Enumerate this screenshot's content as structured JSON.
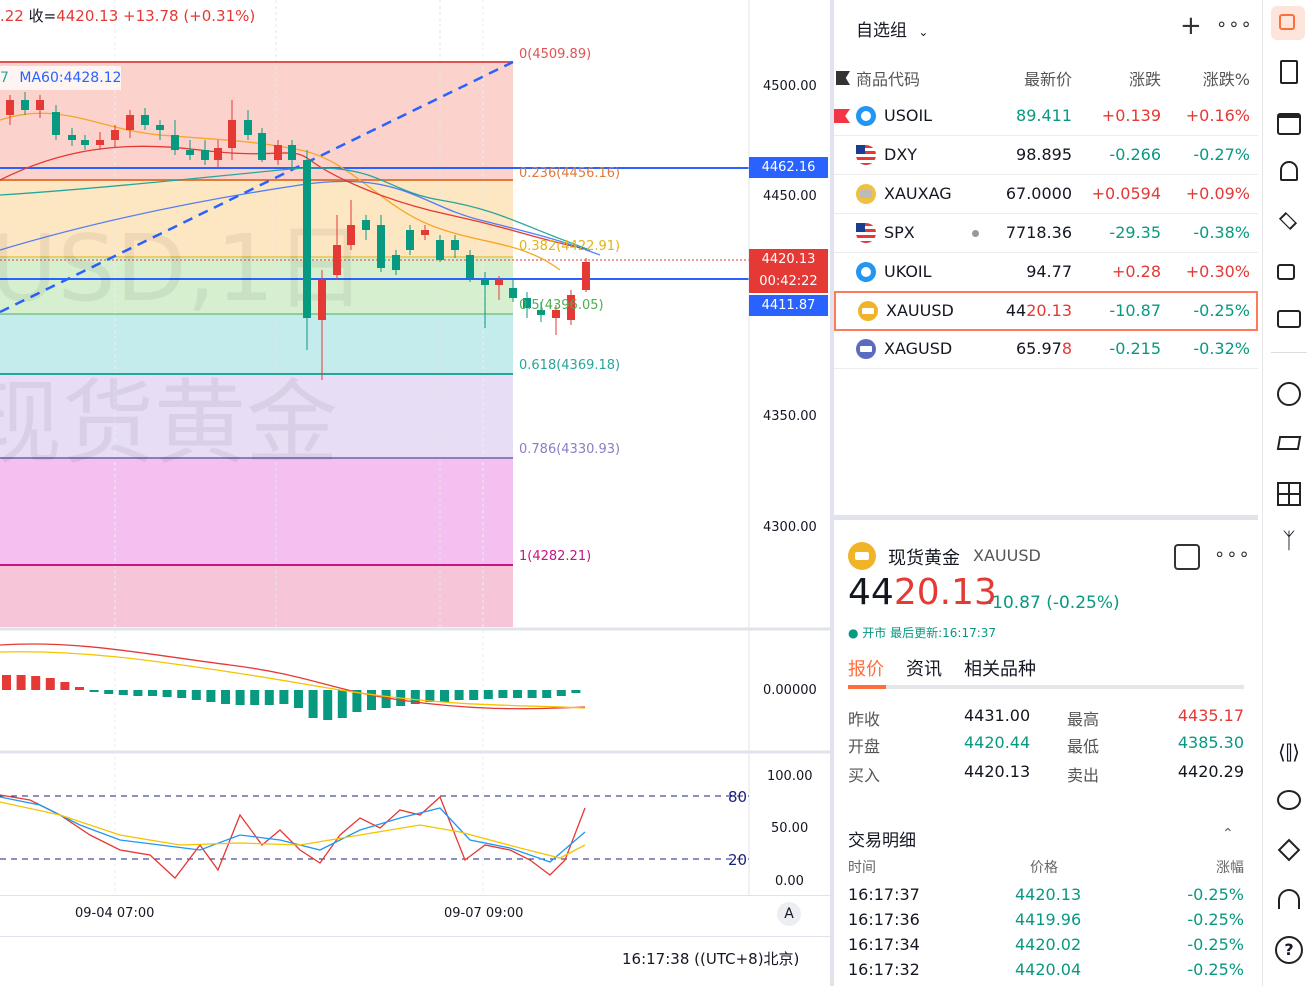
{
  "chart": {
    "top_info": {
      "prefix": ".22",
      "close_label": "收=",
      "close": "4420.13",
      "change": "+13.78",
      "change_pct": "(+0.31%)"
    },
    "ma_legend": {
      "left": "7",
      "ma60": "MA60:4428.12"
    },
    "watermark": {
      "line1": "USD,1日",
      "line2": "现货黄金"
    },
    "fib_levels": [
      {
        "label": "0(4509.89)",
        "color": "#e05353"
      },
      {
        "label": "0.236(4456.16)",
        "color": "#e07a3a"
      },
      {
        "label": "0.382(4422.91)",
        "color": "#e0b31a"
      },
      {
        "label": "0.5(4396.05)",
        "color": "#4caf50"
      },
      {
        "label": "0.618(4369.18)",
        "color": "#26a69a"
      },
      {
        "label": "0.786(4330.93)",
        "color": "#8e7cc3"
      },
      {
        "label": "1(4282.21)",
        "color": "#c71585"
      }
    ],
    "y_axis": [
      "4500.00",
      "4450.00",
      "4350.00",
      "4300.00"
    ],
    "price_tags": {
      "upper": "4462.16",
      "current": "4420.13",
      "countdown": "00:42:22",
      "lower": "4411.87"
    },
    "macd_axis": "0.00000",
    "stoch_axis": [
      "100.00",
      "50.00",
      "0.00"
    ],
    "stoch_levels": [
      "80",
      "20"
    ],
    "x_axis": [
      "09-04 07:00",
      "09-07 09:00"
    ],
    "auto_button": "A",
    "clock": "16:17:38",
    "timezone": "((UTC+8)北京)"
  },
  "watchlist": {
    "group": "自选组",
    "columns": {
      "code": "商品代码",
      "last": "最新价",
      "change": "涨跌",
      "change_pct": "涨跌%"
    },
    "rows": [
      {
        "symbol": "USOIL",
        "last": "89.411",
        "change": "+0.139",
        "pct": "+0.16%",
        "dir": "up"
      },
      {
        "symbol": "DXY",
        "last": "98.895",
        "change": "-0.266",
        "pct": "-0.27%",
        "dir": "dn"
      },
      {
        "symbol": "XAUXAG",
        "last": "67.0000",
        "change": "+0.0594",
        "pct": "+0.09%",
        "dir": "up"
      },
      {
        "symbol": "SPX",
        "last": "7718.36",
        "change": "-29.35",
        "pct": "-0.38%",
        "dir": "dn"
      },
      {
        "symbol": "UKOIL",
        "last": "94.77",
        "change": "+0.28",
        "pct": "+0.30%",
        "dir": "up"
      },
      {
        "symbol": "XAUUSD",
        "last_a": "44",
        "last_b": "20.13",
        "change": "-10.87",
        "pct": "-0.25%",
        "dir": "dn"
      },
      {
        "symbol": "XAGUSD",
        "last_a": "65.97",
        "last_b": "8",
        "change": "-0.215",
        "pct": "-0.32%",
        "dir": "dn"
      }
    ]
  },
  "detail": {
    "name": "现货黄金",
    "symbol": "XAUUSD",
    "price_a": "44",
    "price_b": "20.13",
    "change": "-10.87 (-0.25%)",
    "status": "● 开市 最后更新:16:17:37",
    "tabs": [
      "报价",
      "资讯",
      "相关品种"
    ],
    "quotes": [
      {
        "l1": "昨收",
        "v1": "4431.00",
        "l2": "最高",
        "v2": "4435.17"
      },
      {
        "l1": "开盘",
        "v1": "4420.44",
        "l2": "最低",
        "v2": "4385.30"
      },
      {
        "l1": "买入",
        "v1": "4420.13",
        "l2": "卖出",
        "v2": "4420.29"
      }
    ],
    "trades_title": "交易明细",
    "trade_cols": [
      "时间",
      "价格",
      "涨幅"
    ],
    "trades": [
      {
        "time": "16:17:37",
        "price": "4420.13",
        "pct": "-0.25%"
      },
      {
        "time": "16:17:36",
        "price": "4419.96",
        "pct": "-0.25%"
      },
      {
        "time": "16:17:34",
        "price": "4420.02",
        "pct": "-0.25%"
      },
      {
        "time": "16:17:32",
        "price": "4420.04",
        "pct": "-0.25%"
      }
    ]
  },
  "colors": {
    "up": "#e53935",
    "down": "#089981",
    "accent": "#ff6d3a",
    "blue": "#2962ff"
  }
}
